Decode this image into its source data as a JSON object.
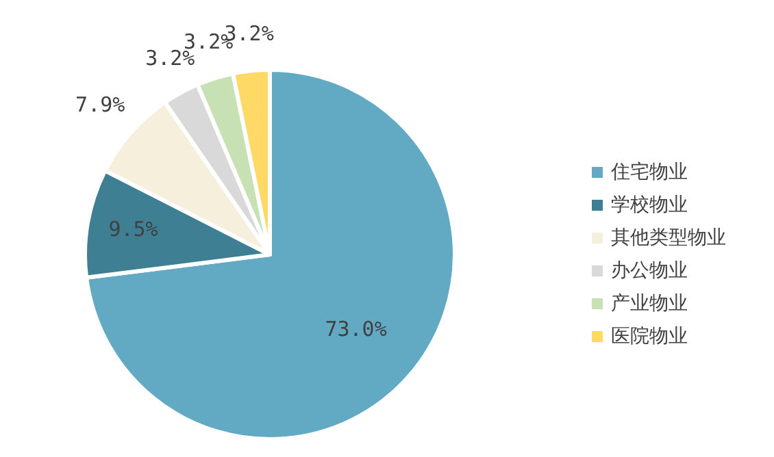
{
  "chart_data": {
    "type": "pie",
    "categories": [
      "住宅物业",
      "学校物业",
      "其他类型物业",
      "办公物业",
      "产业物业",
      "医院物业"
    ],
    "values": [
      73.0,
      9.5,
      7.9,
      3.2,
      3.2,
      3.2
    ],
    "value_labels": [
      "73.0%",
      "9.5%",
      "7.9%",
      "3.2%",
      "3.2%",
      "3.2%"
    ],
    "colors": [
      "#62a9c4",
      "#3f7f93",
      "#f6efdc",
      "#d9d9d9",
      "#c7e1b5",
      "#ffd966"
    ],
    "legend": "right"
  }
}
